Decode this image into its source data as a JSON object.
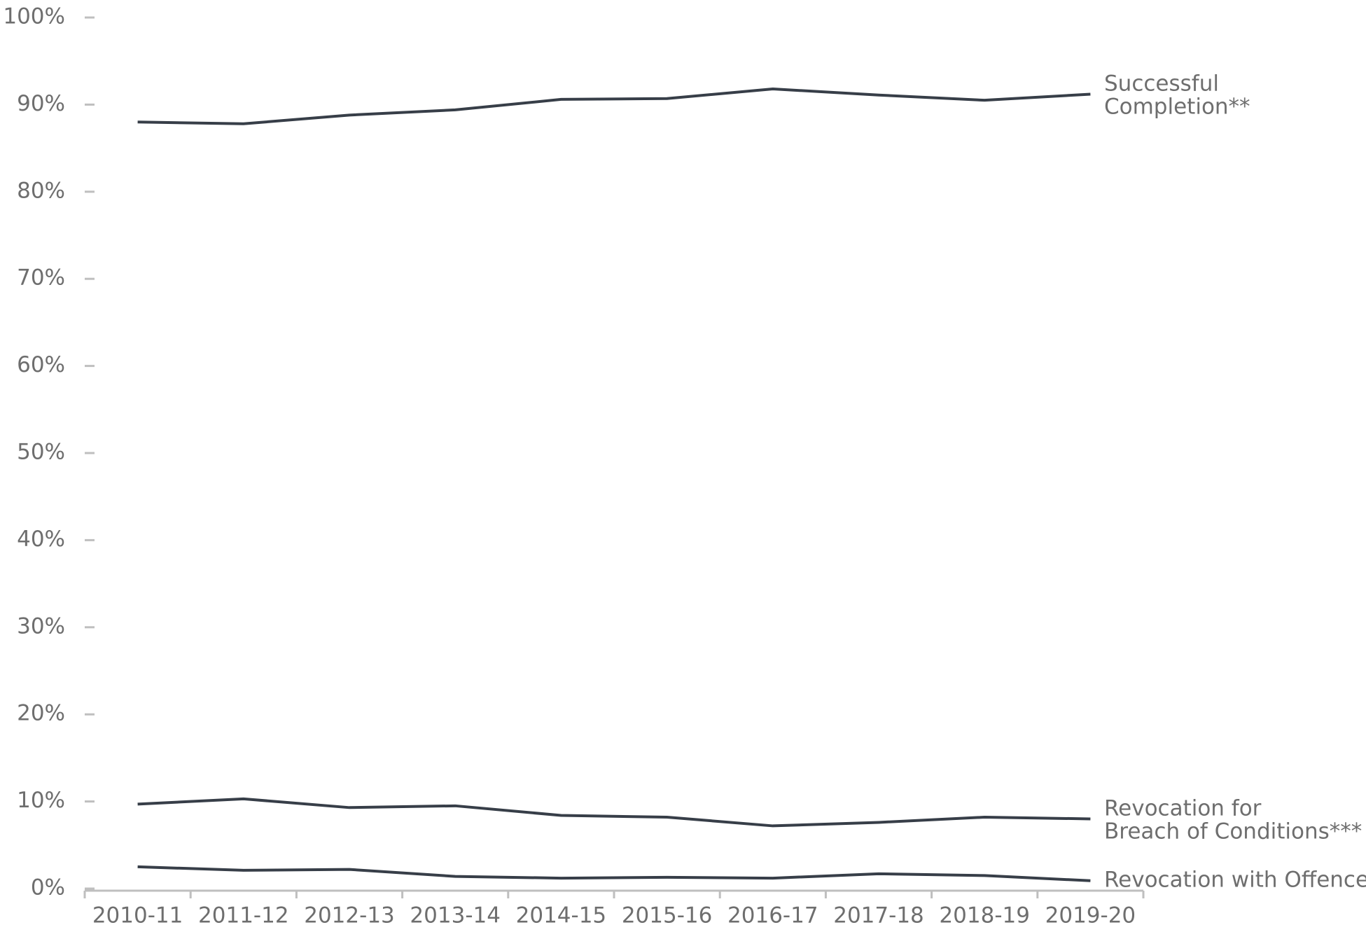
{
  "chart_data": {
    "type": "line",
    "categories": [
      "2010-11",
      "2011-12",
      "2012-13",
      "2013-14",
      "2014-15",
      "2015-16",
      "2016-17",
      "2017-18",
      "2018-19",
      "2019-20"
    ],
    "series": [
      {
        "name": "Successful Completion**",
        "color": "#373e48",
        "values": [
          88.0,
          87.8,
          88.8,
          89.4,
          90.6,
          90.7,
          91.8,
          91.1,
          90.5,
          91.2
        ]
      },
      {
        "name": "Revocation for Breach of Conditions***",
        "color": "#373e48",
        "values": [
          9.7,
          10.3,
          9.3,
          9.5,
          8.4,
          8.2,
          7.2,
          7.6,
          8.2,
          8.0
        ]
      },
      {
        "name": "Revocation with Offence",
        "color": "#373e48",
        "values": [
          2.5,
          2.1,
          2.2,
          1.4,
          1.2,
          1.3,
          1.2,
          1.7,
          1.5,
          0.9
        ]
      }
    ],
    "ylim": [
      0,
      100
    ],
    "yticks": [
      {
        "value": 0,
        "label": "0%"
      },
      {
        "value": 10,
        "label": "10%"
      },
      {
        "value": 20,
        "label": "20%"
      },
      {
        "value": 30,
        "label": "30%"
      },
      {
        "value": 40,
        "label": "40%"
      },
      {
        "value": 50,
        "label": "50%"
      },
      {
        "value": 60,
        "label": "60%"
      },
      {
        "value": 70,
        "label": "70%"
      },
      {
        "value": 80,
        "label": "80%"
      },
      {
        "value": 90,
        "label": "90%"
      },
      {
        "value": 100,
        "label": "100%"
      }
    ]
  }
}
